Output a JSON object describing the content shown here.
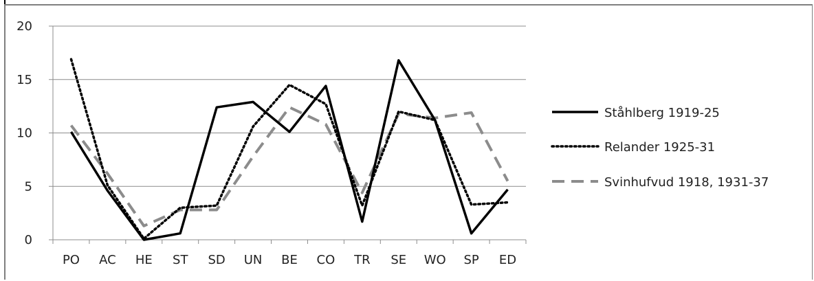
{
  "chart_data": {
    "type": "line",
    "title": "",
    "xlabel": "",
    "ylabel": "",
    "categories": [
      "PO",
      "AC",
      "HE",
      "ST",
      "SD",
      "UN",
      "BE",
      "CO",
      "TR",
      "SE",
      "WO",
      "SP",
      "ED"
    ],
    "ylim": [
      0,
      20
    ],
    "yticks": [
      "0",
      "5",
      "10",
      "15",
      "20"
    ],
    "grid": "horizontal",
    "legend_position": "right",
    "series": [
      {
        "name": "Ståhlberg 1919-25",
        "style": "solid",
        "color": "#000000",
        "values": [
          10.1,
          4.6,
          0.0,
          0.6,
          12.4,
          12.9,
          10.1,
          14.4,
          1.7,
          16.8,
          11.2,
          0.6,
          4.7
        ]
      },
      {
        "name": "Relander 1925-31",
        "style": "dotted",
        "color": "#000000",
        "values": [
          16.9,
          5.1,
          0.1,
          3.0,
          3.2,
          10.6,
          14.5,
          12.7,
          3.2,
          12.0,
          11.2,
          3.3,
          3.5
        ]
      },
      {
        "name": "Svinhufvud  1918, 1931-37",
        "style": "dashed",
        "color": "#8c8c8c",
        "values": [
          10.7,
          6.2,
          1.3,
          2.8,
          2.8,
          7.8,
          12.4,
          10.8,
          4.4,
          11.8,
          11.4,
          11.9,
          5.5
        ]
      }
    ]
  }
}
